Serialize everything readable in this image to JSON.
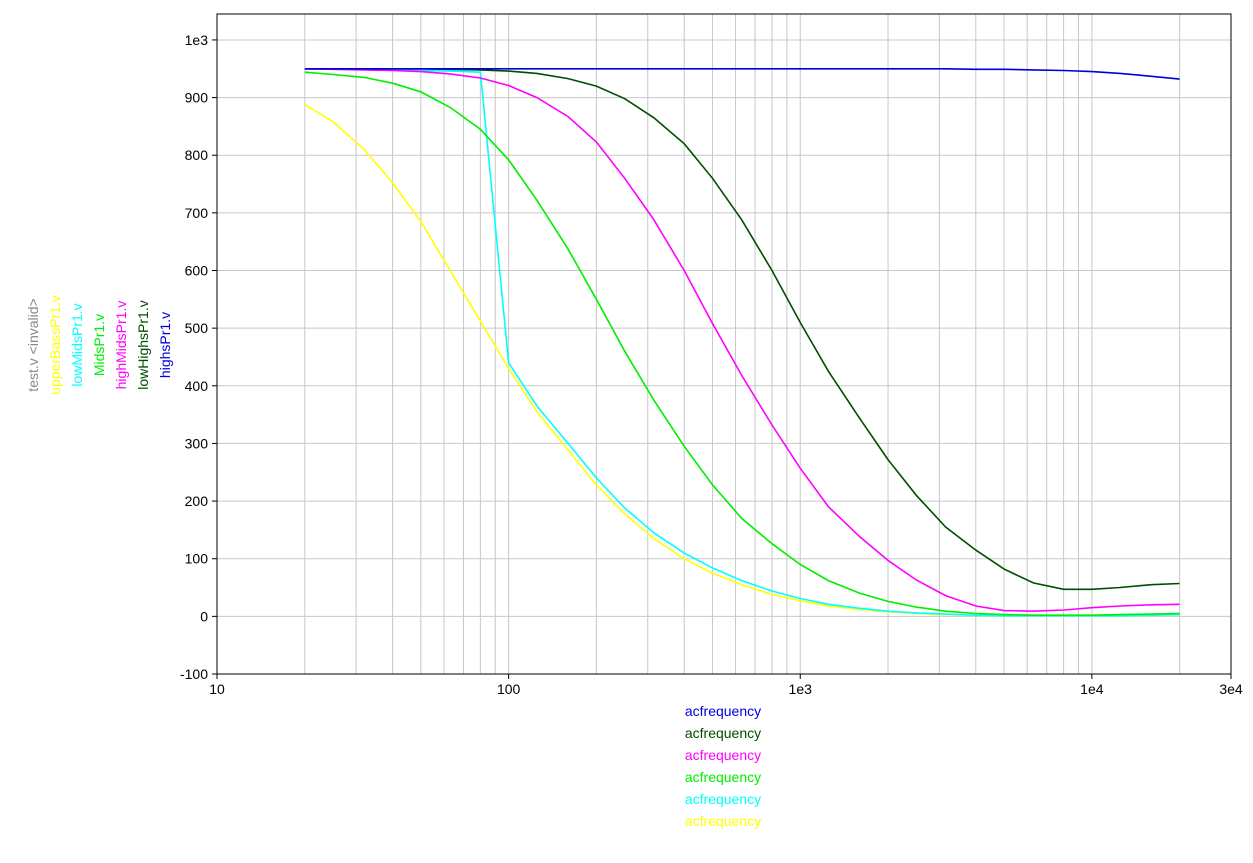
{
  "chart_data": {
    "type": "line",
    "xscale": "log",
    "xlim": [
      10,
      30000
    ],
    "ylim": [
      -100,
      1045
    ],
    "grid": true,
    "x_ticks": [
      {
        "v": 10,
        "label": "10"
      },
      {
        "v": 100,
        "label": "100"
      },
      {
        "v": 1000,
        "label": "1e3"
      },
      {
        "v": 10000,
        "label": "1e4"
      },
      {
        "v": 30000,
        "label": "3e4"
      }
    ],
    "y_ticks": [
      {
        "v": -100,
        "label": "-100"
      },
      {
        "v": 0,
        "label": "0"
      },
      {
        "v": 100,
        "label": "100"
      },
      {
        "v": 200,
        "label": "200"
      },
      {
        "v": 300,
        "label": "300"
      },
      {
        "v": 400,
        "label": "400"
      },
      {
        "v": 500,
        "label": "500"
      },
      {
        "v": 600,
        "label": "600"
      },
      {
        "v": 700,
        "label": "700"
      },
      {
        "v": 800,
        "label": "800"
      },
      {
        "v": 900,
        "label": "900"
      },
      {
        "v": 1000,
        "label": "1e3"
      }
    ],
    "y_legend": [
      {
        "label": "test.v <invalid>",
        "color": "#888888"
      },
      {
        "label": "upperBassPr1.v",
        "color": "#ffff00"
      },
      {
        "label": "lowMidsPr1.v",
        "color": "#00ffff"
      },
      {
        "label": "MidsPr1.v",
        "color": "#00ee00"
      },
      {
        "label": "highMidsPr1.v",
        "color": "#ff00ff"
      },
      {
        "label": "lowHighsPr1.v",
        "color": "#004d00"
      },
      {
        "label": "highsPr1.v",
        "color": "#0000dd"
      }
    ],
    "x_legend": [
      {
        "label": "acfrequency",
        "color": "#0000dd"
      },
      {
        "label": "acfrequency",
        "color": "#004d00"
      },
      {
        "label": "acfrequency",
        "color": "#ff00ff"
      },
      {
        "label": "acfrequency",
        "color": "#00ee00"
      },
      {
        "label": "acfrequency",
        "color": "#00ffff"
      },
      {
        "label": "acfrequency",
        "color": "#ffff00"
      }
    ],
    "x": [
      20,
      25,
      32,
      40,
      50,
      63,
      80,
      100,
      125,
      160,
      200,
      250,
      315,
      400,
      500,
      630,
      800,
      1000,
      1250,
      1600,
      2000,
      2500,
      3150,
      4000,
      5000,
      6300,
      8000,
      10000,
      12500,
      16000,
      20000
    ],
    "series": [
      {
        "name": "upperBassPr1.v",
        "color": "#ffff00",
        "values": [
          888,
          858,
          810,
          752,
          685,
          600,
          512,
          430,
          355,
          288,
          228,
          178,
          135,
          100,
          75,
          55,
          38,
          27,
          18,
          12,
          8,
          5,
          3,
          2,
          1,
          1,
          1,
          1,
          1,
          2,
          3
        ]
      },
      {
        "name": "lowMidsPr1.v",
        "color": "#00ffff",
        "values": [
          950,
          950,
          949,
          948,
          947,
          946,
          944,
          440,
          365,
          300,
          240,
          188,
          145,
          110,
          84,
          62,
          44,
          31,
          21,
          14,
          9,
          6,
          4,
          2,
          1,
          1,
          1,
          1,
          1,
          2,
          3
        ]
      },
      {
        "name": "MidsPr1.v",
        "color": "#00ee00",
        "values": [
          944,
          940,
          935,
          925,
          910,
          883,
          845,
          792,
          722,
          637,
          550,
          460,
          375,
          295,
          228,
          170,
          126,
          90,
          62,
          40,
          26,
          16,
          9,
          5,
          3,
          2,
          2,
          2,
          3,
          4,
          5
        ]
      },
      {
        "name": "highMidsPr1.v",
        "color": "#ff00ff",
        "values": [
          950,
          949,
          948,
          947,
          945,
          941,
          934,
          921,
          900,
          867,
          823,
          760,
          688,
          600,
          508,
          418,
          332,
          257,
          190,
          138,
          97,
          63,
          36,
          18,
          10,
          9,
          11,
          15,
          18,
          20,
          21
        ]
      },
      {
        "name": "lowHighsPr1.v",
        "color": "#004d00",
        "values": [
          950,
          950,
          950,
          950,
          950,
          949,
          948,
          946,
          942,
          933,
          920,
          898,
          865,
          820,
          760,
          688,
          600,
          510,
          425,
          343,
          272,
          210,
          155,
          115,
          82,
          58,
          47,
          47,
          50,
          55,
          57
        ]
      },
      {
        "name": "highsPr1.v",
        "color": "#0000dd",
        "values": [
          950,
          950,
          950,
          950,
          950,
          950,
          950,
          950,
          950,
          950,
          950,
          950,
          950,
          950,
          950,
          950,
          950,
          950,
          950,
          950,
          950,
          950,
          950,
          949,
          949,
          948,
          947,
          945,
          942,
          937,
          932
        ]
      }
    ]
  }
}
